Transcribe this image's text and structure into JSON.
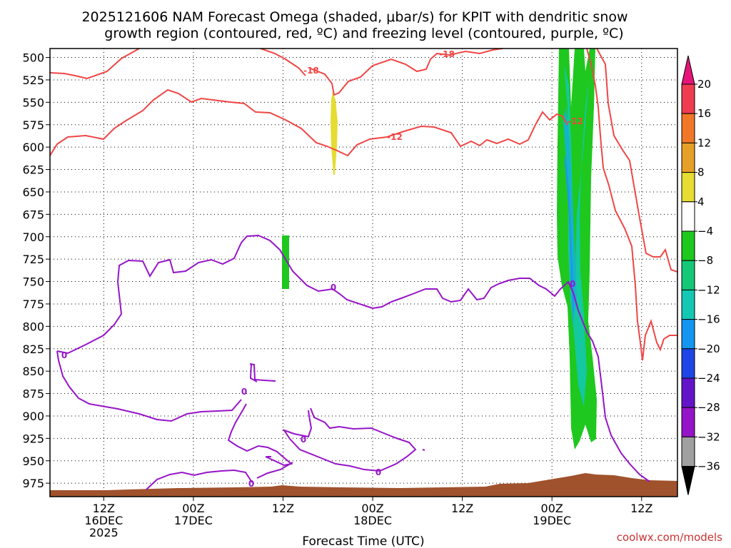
{
  "chart_data": {
    "type": "heatmap",
    "title_line1": "2025121606 NAM Forecast Omega (shaded, μbar/s) for KPIT with dendritic snow",
    "title_line2": "growth region (contoured, red, ºC) and freezing level (contoured, purple, ºC)",
    "xlabel": "Forecast Time (UTC)",
    "credit": "coolwx.com/models",
    "y_axis": {
      "unit": "hPa",
      "range": [
        490,
        990
      ],
      "ticks": [
        500,
        525,
        550,
        575,
        600,
        625,
        650,
        675,
        700,
        725,
        750,
        775,
        800,
        825,
        850,
        875,
        900,
        925,
        950,
        975
      ]
    },
    "x_axis": {
      "unit": "forecast hours",
      "range": [
        0,
        70
      ],
      "ticks": [
        {
          "hour": 6,
          "lines": [
            "12Z",
            "16DEC",
            "2025"
          ]
        },
        {
          "hour": 16,
          "lines": [
            "00Z",
            "17DEC"
          ]
        },
        {
          "hour": 26,
          "lines": [
            "12Z"
          ]
        },
        {
          "hour": 36,
          "lines": [
            "00Z",
            "18DEC"
          ]
        },
        {
          "hour": 46,
          "lines": [
            "12Z"
          ]
        },
        {
          "hour": 56,
          "lines": [
            "00Z",
            "19DEC"
          ]
        },
        {
          "hour": 66,
          "lines": [
            "12Z"
          ]
        }
      ]
    },
    "colorbar": {
      "labels": [
        "20",
        "16",
        "12",
        "8",
        "4",
        "−4",
        "−8",
        "−12",
        "−16",
        "−20",
        "−24",
        "−28",
        "−32",
        "−36"
      ],
      "colors": [
        "#f03c50",
        "#f07828",
        "#e6a028",
        "#e6dc32",
        "#ffffff",
        "#1ec81e",
        "#14c878",
        "#14c8b4",
        "#1496f0",
        "#1e46e6",
        "#6414c8",
        "#9614c8",
        "#a0a0a0"
      ],
      "top_arrow_color": "#e6147a",
      "bottom_arrow_color": "#000000"
    },
    "contour_labels": {
      "red": [
        "-18",
        "-18",
        "-12",
        "-12"
      ],
      "purple": [
        "0",
        "0",
        "0",
        "0",
        "0",
        "0",
        "0"
      ]
    },
    "colors": {
      "red_contour": "#f04646",
      "purple_contour": "#9614c8",
      "terrain": "#a0522d",
      "omega_green": "#1ec81e",
      "omega_teal": "#14c8a0",
      "omega_cyan": "#14b4c8",
      "omega_blue": "#1e96f0",
      "omega_yellow": "#e6dc32"
    }
  }
}
